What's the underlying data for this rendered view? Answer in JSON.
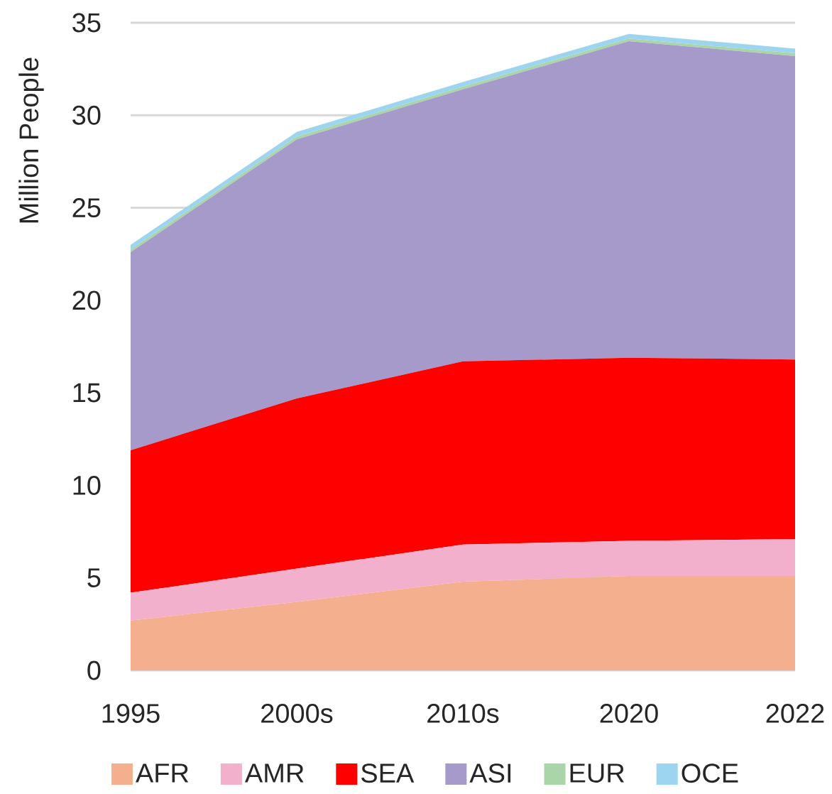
{
  "chart_data": {
    "type": "area",
    "stacked": true,
    "ylabel": "Million People",
    "categories": [
      "1995",
      "2000s",
      "2010s",
      "2020",
      "2022"
    ],
    "series": [
      {
        "name": "AFR",
        "color": "#f4b08e",
        "values": [
          2.7,
          3.7,
          4.8,
          5.1,
          5.1
        ]
      },
      {
        "name": "AMR",
        "color": "#f2b0cc",
        "values": [
          1.5,
          1.8,
          2.0,
          1.9,
          2.0
        ]
      },
      {
        "name": "SEA",
        "color": "#ff0000",
        "values": [
          7.7,
          9.2,
          9.9,
          9.9,
          9.7
        ]
      },
      {
        "name": "ASI",
        "color": "#a59aca",
        "values": [
          10.7,
          14.0,
          14.7,
          17.1,
          16.4
        ]
      },
      {
        "name": "EUR",
        "color": "#a9d5a9",
        "values": [
          0.15,
          0.15,
          0.15,
          0.15,
          0.15
        ]
      },
      {
        "name": "OCE",
        "color": "#9dd5f0",
        "values": [
          0.25,
          0.25,
          0.25,
          0.25,
          0.25
        ]
      }
    ],
    "ylim": [
      0,
      35
    ],
    "yticks": [
      0,
      5,
      10,
      15,
      20,
      25,
      30,
      35
    ],
    "grid": "y",
    "legend": "bottom"
  }
}
